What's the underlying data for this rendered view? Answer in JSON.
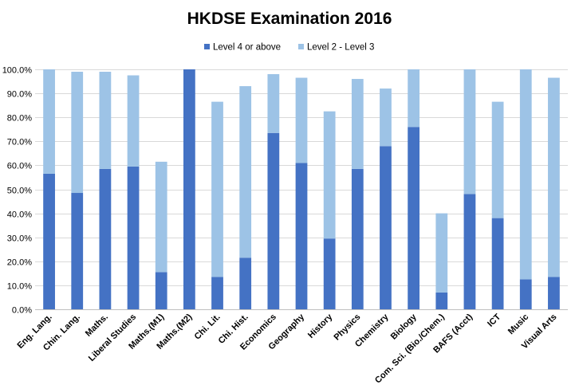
{
  "chart_data": {
    "type": "bar",
    "stacked": true,
    "title": "HKDSE Examination 2016",
    "xlabel": "",
    "ylabel": "",
    "ylim": [
      0,
      100
    ],
    "y_tick_step": 10,
    "y_tick_format": "percent_1dp",
    "grid": true,
    "legend_position": "top",
    "categories": [
      "Eng. Lang.",
      "Chin. Lang.",
      "Maths.",
      "Liberal Studies",
      "Maths.(M1)",
      "Maths.(M2)",
      "Chi. Lit.",
      "Chi. Hist.",
      "Economics",
      "Geography",
      "History",
      "Physics",
      "Chemistry",
      "Biology",
      "Com. Sci. (Bio./Chem.)",
      "BAFS (Acct)",
      "ICT",
      "Music",
      "Visual Arts"
    ],
    "series": [
      {
        "name": "Level 4 or above",
        "color": "#4472c4",
        "values": [
          56.5,
          48.5,
          58.5,
          59.5,
          15.5,
          100,
          13.5,
          21.5,
          73.5,
          61,
          29.5,
          58.5,
          68,
          76,
          7,
          48,
          38,
          12.5,
          13.5
        ]
      },
      {
        "name": "Level 2 - Level 3",
        "color": "#9dc3e6",
        "values": [
          43.5,
          50.5,
          40.5,
          38,
          46,
          0,
          73,
          71.5,
          24.5,
          35.5,
          53,
          37.5,
          24,
          24,
          33,
          52,
          48.5,
          87.5,
          83
        ]
      }
    ]
  }
}
